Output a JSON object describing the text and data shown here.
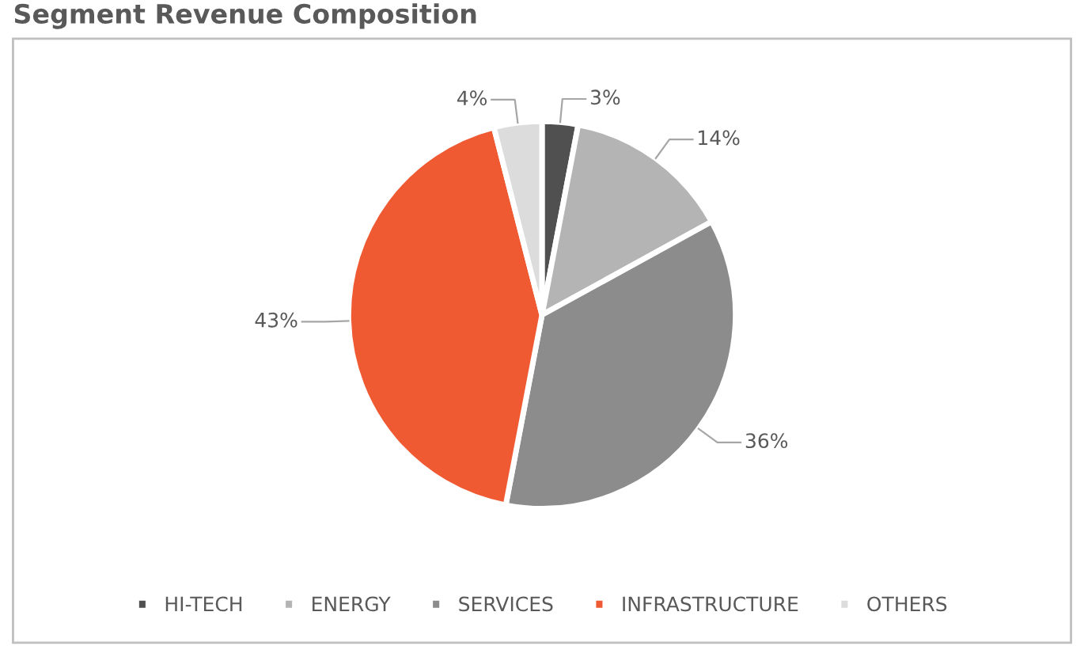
{
  "chart_data": {
    "type": "pie",
    "title": "Segment Revenue Composition",
    "categories": [
      "HI-TECH",
      "ENERGY",
      "SERVICES",
      "INFRASTRUCTURE",
      "OTHERS"
    ],
    "values": [
      3,
      14,
      36,
      43,
      4
    ],
    "colors": [
      "#505050",
      "#b4b4b4",
      "#8c8c8c",
      "#f05a32",
      "#dcdcdc"
    ],
    "value_labels": [
      "3%",
      "14%",
      "36%",
      "43%",
      "4%"
    ],
    "legend": "bottom"
  }
}
